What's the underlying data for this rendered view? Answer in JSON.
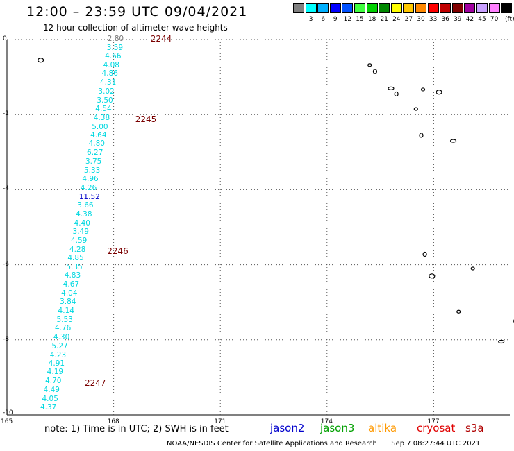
{
  "header": {
    "title": "12:00 – 23:59 UTC 09/04/2021",
    "subtitle": "12 hour collection of altimeter wave heights"
  },
  "legend": {
    "unit": "(ft)",
    "items": [
      {
        "color": "#808080",
        "label": ""
      },
      {
        "color": "#00ffff",
        "label": "3"
      },
      {
        "color": "#00b0ff",
        "label": "6"
      },
      {
        "color": "#0000ff",
        "label": "9"
      },
      {
        "color": "#0050ff",
        "label": "12"
      },
      {
        "color": "#40ff40",
        "label": "15"
      },
      {
        "color": "#00d000",
        "label": "18"
      },
      {
        "color": "#008800",
        "label": "21"
      },
      {
        "color": "#ffff00",
        "label": "24"
      },
      {
        "color": "#ffc800",
        "label": "27"
      },
      {
        "color": "#ff8800",
        "label": "30"
      },
      {
        "color": "#ff0000",
        "label": "33"
      },
      {
        "color": "#c00000",
        "label": "36"
      },
      {
        "color": "#800000",
        "label": "39"
      },
      {
        "color": "#a000a0",
        "label": "42"
      },
      {
        "color": "#c8a0ff",
        "label": "45"
      },
      {
        "color": "#ff80ff",
        "label": "70"
      },
      {
        "color": "#000000",
        "label": ""
      }
    ]
  },
  "axes": {
    "lat_range": [
      -10,
      0
    ],
    "lon_range": [
      165,
      179.5
    ],
    "y_ticks": [
      "0",
      "-2",
      "-4",
      "-6",
      "-8",
      "-10"
    ],
    "x_ticks": [
      "165",
      "168",
      "171",
      "174",
      "177"
    ]
  },
  "track": {
    "readings": [
      {
        "lat": -0.0,
        "lon": 168.1,
        "v": "2.80",
        "style": "grey"
      },
      {
        "lat": -0.24,
        "lon": 168.08,
        "v": "3.59"
      },
      {
        "lat": -0.47,
        "lon": 168.03,
        "v": "4.66"
      },
      {
        "lat": -0.7,
        "lon": 167.98,
        "v": "4.08"
      },
      {
        "lat": -0.93,
        "lon": 167.94,
        "v": "4.86"
      },
      {
        "lat": -1.17,
        "lon": 167.89,
        "v": "4.31"
      },
      {
        "lat": -1.4,
        "lon": 167.84,
        "v": "3.02"
      },
      {
        "lat": -1.64,
        "lon": 167.8,
        "v": "3.50"
      },
      {
        "lat": -1.87,
        "lon": 167.76,
        "v": "4.54"
      },
      {
        "lat": -2.1,
        "lon": 167.71,
        "v": "4.38"
      },
      {
        "lat": -2.34,
        "lon": 167.66,
        "v": "5.00"
      },
      {
        "lat": -2.57,
        "lon": 167.62,
        "v": "4.64"
      },
      {
        "lat": -2.8,
        "lon": 167.57,
        "v": "4.80"
      },
      {
        "lat": -3.04,
        "lon": 167.52,
        "v": "6.27"
      },
      {
        "lat": -3.27,
        "lon": 167.48,
        "v": "3.75"
      },
      {
        "lat": -3.51,
        "lon": 167.44,
        "v": "5.33"
      },
      {
        "lat": -3.74,
        "lon": 167.39,
        "v": "4.96"
      },
      {
        "lat": -3.97,
        "lon": 167.34,
        "v": "4.26"
      },
      {
        "lat": -4.21,
        "lon": 167.3,
        "v": "11.52",
        "style": "hi"
      },
      {
        "lat": -4.44,
        "lon": 167.25,
        "v": "3.66"
      },
      {
        "lat": -4.67,
        "lon": 167.21,
        "v": "4.38"
      },
      {
        "lat": -4.91,
        "lon": 167.16,
        "v": "4.40"
      },
      {
        "lat": -5.14,
        "lon": 167.12,
        "v": "3.49"
      },
      {
        "lat": -5.38,
        "lon": 167.07,
        "v": "4.59"
      },
      {
        "lat": -5.61,
        "lon": 167.03,
        "v": "4.28"
      },
      {
        "lat": -5.84,
        "lon": 166.98,
        "v": "4.85"
      },
      {
        "lat": -6.08,
        "lon": 166.94,
        "v": "5.35"
      },
      {
        "lat": -6.31,
        "lon": 166.89,
        "v": "4.83"
      },
      {
        "lat": -6.55,
        "lon": 166.85,
        "v": "4.67"
      },
      {
        "lat": -6.78,
        "lon": 166.8,
        "v": "4.04"
      },
      {
        "lat": -7.01,
        "lon": 166.76,
        "v": "3.84"
      },
      {
        "lat": -7.25,
        "lon": 166.71,
        "v": "4.14"
      },
      {
        "lat": -7.48,
        "lon": 166.67,
        "v": "5.53"
      },
      {
        "lat": -7.71,
        "lon": 166.62,
        "v": "4.76"
      },
      {
        "lat": -7.95,
        "lon": 166.58,
        "v": "4.30"
      },
      {
        "lat": -8.18,
        "lon": 166.53,
        "v": "5.27"
      },
      {
        "lat": -8.42,
        "lon": 166.48,
        "v": "4.23"
      },
      {
        "lat": -8.65,
        "lon": 166.44,
        "v": "4.91"
      },
      {
        "lat": -8.88,
        "lon": 166.4,
        "v": "4.19"
      },
      {
        "lat": -9.12,
        "lon": 166.35,
        "v": "4.70"
      },
      {
        "lat": -9.35,
        "lon": 166.3,
        "v": "4.49"
      },
      {
        "lat": -9.59,
        "lon": 166.26,
        "v": "4.05"
      },
      {
        "lat": -9.82,
        "lon": 166.21,
        "v": "4.37"
      }
    ],
    "pass_times": [
      {
        "lat": 0.02,
        "lon": 169.35,
        "label": "2244"
      },
      {
        "lat": -2.13,
        "lon": 168.92,
        "label": "2245"
      },
      {
        "lat": -5.64,
        "lon": 168.13,
        "label": "2246"
      },
      {
        "lat": -9.15,
        "lon": 167.5,
        "label": "2247"
      }
    ]
  },
  "islands": [
    {
      "lat": -0.55,
      "lon": 165.95
    },
    {
      "lat": -0.68,
      "lon": 175.2
    },
    {
      "lat": -0.85,
      "lon": 175.35
    },
    {
      "lat": -1.3,
      "lon": 175.8
    },
    {
      "lat": -1.45,
      "lon": 175.95
    },
    {
      "lat": -1.33,
      "lon": 176.7
    },
    {
      "lat": -1.4,
      "lon": 177.15
    },
    {
      "lat": -1.85,
      "lon": 176.5
    },
    {
      "lat": -2.55,
      "lon": 176.65
    },
    {
      "lat": -2.7,
      "lon": 177.55
    },
    {
      "lat": -5.72,
      "lon": 176.75
    },
    {
      "lat": -6.1,
      "lon": 178.1
    },
    {
      "lat": -6.3,
      "lon": 176.95
    },
    {
      "lat": -7.25,
      "lon": 177.7
    },
    {
      "lat": -7.5,
      "lon": 179.3
    },
    {
      "lat": -8.05,
      "lon": 178.9
    }
  ],
  "footer": {
    "note": "note:  1) Time is in UTC;  2) SWH is in feet",
    "satellites": [
      {
        "name": "jason2",
        "color": "#0000cc"
      },
      {
        "name": "jason3",
        "color": "#00a000"
      },
      {
        "name": "altika",
        "color": "#ff9900"
      },
      {
        "name": "cryosat",
        "color": "#e00000"
      },
      {
        "name": "s3a",
        "color": "#b00000"
      }
    ],
    "credit": "NOAA/NESDIS Center for Satellite Applications and Research",
    "timestamp": "Sep  7 08:27:44 UTC 2021"
  }
}
